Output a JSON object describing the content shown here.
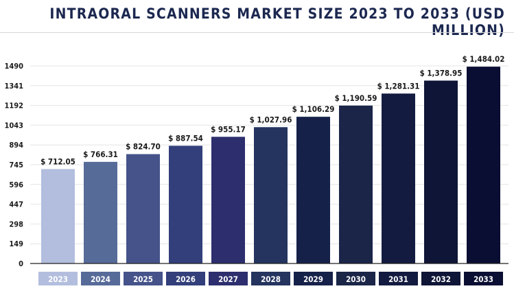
{
  "chart_data": {
    "type": "bar",
    "title": "INTRAORAL SCANNERS MARKET SIZE 2023 TO 2033 (USD MILLION)",
    "categories": [
      "2023",
      "2024",
      "2025",
      "2026",
      "2027",
      "2028",
      "2029",
      "2030",
      "2031",
      "2032",
      "2033"
    ],
    "values": [
      712.05,
      766.31,
      824.7,
      887.54,
      955.17,
      1027.96,
      1106.29,
      1190.59,
      1281.31,
      1378.95,
      1484.02
    ],
    "value_labels": [
      "$ 712.05",
      "$ 766.31",
      "$ 824.70",
      "$ 887.54",
      "$ 955.17",
      "$ 1,027.96",
      "$ 1,106.29",
      "$ 1,190.59",
      "$ 1,281.31",
      "$ 1,378.95",
      "$ 1,484.02"
    ],
    "yticks": [
      0,
      149,
      298,
      447,
      596,
      745,
      894,
      1043,
      1192,
      1341,
      1490
    ],
    "ylim": [
      0,
      1490
    ],
    "grid": true,
    "legend": "none",
    "bar_colors": [
      "#b3bede",
      "#576b99",
      "#45538a",
      "#323f7a",
      "#2c2e6d",
      "#24345f",
      "#16214a",
      "#1a2548",
      "#131b40",
      "#0f1536",
      "#0b0e33"
    ],
    "category_label_bg": [
      "#b3bede",
      "#576b99",
      "#45538a",
      "#323f7a",
      "#2c2e6d",
      "#24345f",
      "#16214a",
      "#1a2548",
      "#131b40",
      "#0f1536",
      "#0b0e33"
    ],
    "grid_color": "#e4e4e4",
    "axis_color": "#222222"
  }
}
